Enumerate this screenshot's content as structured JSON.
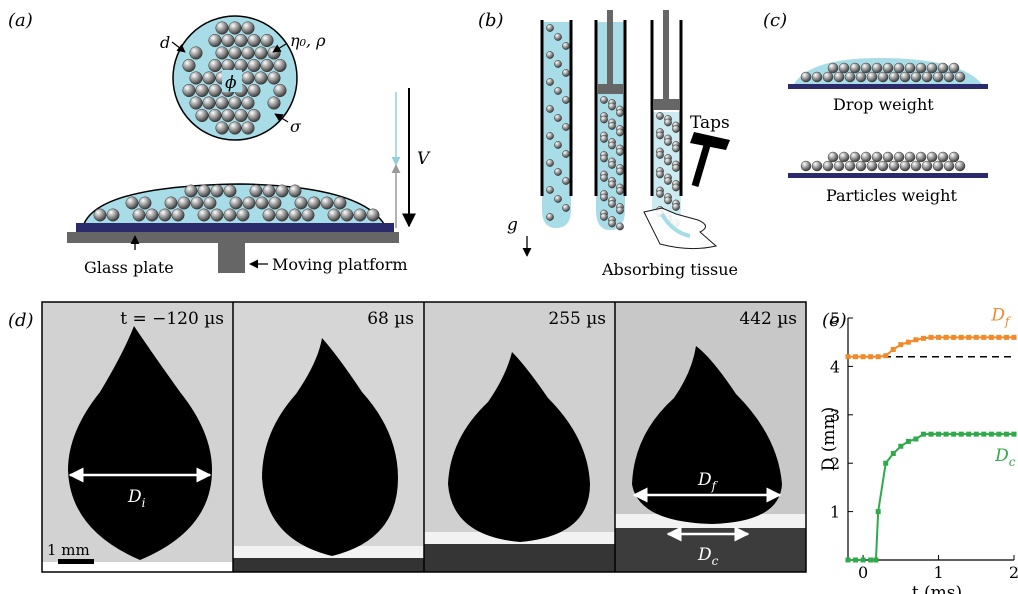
{
  "panels": {
    "a": {
      "label": "(a)",
      "d_label": "d",
      "eta_rho_label": "η₀, ρ",
      "phi_label": "ϕ",
      "sigma_label": "σ",
      "V_label": "V",
      "glass_plate": "Glass plate",
      "moving_platform": "Moving platform"
    },
    "b": {
      "label": "(b)",
      "g_label": "g",
      "taps_label": "Taps",
      "tissue_label": "Absorbing tissue"
    },
    "c": {
      "label": "(c)",
      "drop_weight": "Drop weight",
      "particles_weight": "Particles weight"
    },
    "d": {
      "label": "(d)",
      "frames": [
        {
          "time": "t = −120 µs"
        },
        {
          "time": "68 µs"
        },
        {
          "time": "255 µs"
        },
        {
          "time": "442 µs"
        }
      ],
      "Di_label": "D",
      "Di_sub": "i",
      "Df_label": "D",
      "Df_sub": "f",
      "Dc_label": "D",
      "Dc_sub": "c",
      "scale_label": "1 mm"
    },
    "e": {
      "label": "(e)"
    }
  },
  "colors": {
    "liquid": "#a8dde8",
    "plate": "#2b2a6b",
    "grey": "#666666",
    "orange": "#f08a2a",
    "green": "#2faa4a"
  },
  "chart_data": {
    "type": "line",
    "xlabel": "t (ms)",
    "ylabel": "D (mm)",
    "xlim": [
      -0.2,
      2
    ],
    "ylim": [
      0,
      5
    ],
    "xticks": [
      0,
      1,
      2
    ],
    "yticks": [
      1,
      2,
      3,
      4,
      5
    ],
    "reference_line": {
      "y": 4.2,
      "style": "dashed"
    },
    "series": [
      {
        "name": "D_f",
        "label": "D",
        "sub": "f",
        "color": "#f08a2a",
        "x": [
          -0.2,
          -0.1,
          0,
          0.1,
          0.2,
          0.3,
          0.4,
          0.5,
          0.6,
          0.7,
          0.8,
          0.9,
          1.0,
          1.1,
          1.2,
          1.3,
          1.4,
          1.5,
          1.6,
          1.7,
          1.8,
          1.9,
          2.0
        ],
        "values": [
          4.2,
          4.2,
          4.2,
          4.2,
          4.2,
          4.22,
          4.35,
          4.45,
          4.5,
          4.55,
          4.58,
          4.6,
          4.6,
          4.6,
          4.6,
          4.6,
          4.6,
          4.6,
          4.6,
          4.6,
          4.6,
          4.6,
          4.6
        ]
      },
      {
        "name": "D_c",
        "label": "D",
        "sub": "c",
        "color": "#2faa4a",
        "x": [
          -0.2,
          -0.1,
          0,
          0.1,
          0.17,
          0.2,
          0.3,
          0.4,
          0.5,
          0.6,
          0.7,
          0.8,
          0.9,
          1.0,
          1.1,
          1.2,
          1.3,
          1.4,
          1.5,
          1.6,
          1.7,
          1.8,
          1.9,
          2.0
        ],
        "values": [
          0,
          0,
          0,
          0,
          0,
          1.0,
          2.0,
          2.2,
          2.35,
          2.45,
          2.5,
          2.6,
          2.6,
          2.6,
          2.6,
          2.6,
          2.6,
          2.6,
          2.6,
          2.6,
          2.6,
          2.6,
          2.6,
          2.6
        ]
      }
    ]
  }
}
